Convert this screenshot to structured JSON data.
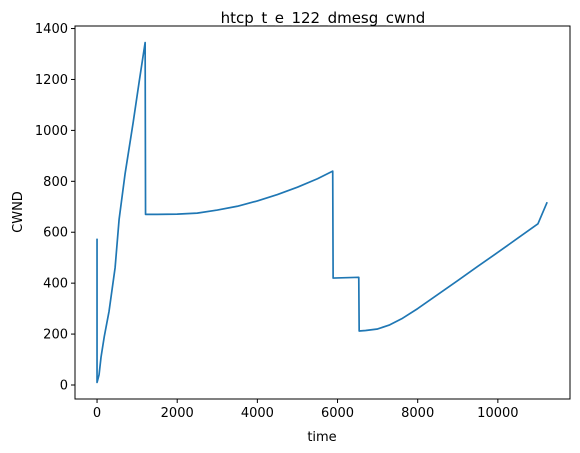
{
  "chart_data": {
    "type": "line",
    "title": "htcp_t_e_122_dmesg_cwnd",
    "xlabel": "time",
    "ylabel": "CWND",
    "xlim": [
      -550,
      11800
    ],
    "ylim": [
      -55,
      1410
    ],
    "xticks": [
      0,
      2000,
      4000,
      6000,
      8000,
      10000
    ],
    "yticks": [
      0,
      200,
      400,
      600,
      800,
      1000,
      1200,
      1400
    ],
    "grid": false,
    "legend": "none",
    "series": [
      {
        "color": "#1f77b4",
        "points": [
          [
            0,
            575
          ],
          [
            0,
            10
          ],
          [
            50,
            40
          ],
          [
            100,
            110
          ],
          [
            180,
            190
          ],
          [
            300,
            290
          ],
          [
            450,
            460
          ],
          [
            550,
            650
          ],
          [
            700,
            830
          ],
          [
            900,
            1030
          ],
          [
            1050,
            1190
          ],
          [
            1200,
            1345
          ],
          [
            1210,
            670
          ],
          [
            1500,
            670
          ],
          [
            2000,
            671
          ],
          [
            2500,
            675
          ],
          [
            3000,
            687
          ],
          [
            3500,
            702
          ],
          [
            4000,
            723
          ],
          [
            4500,
            748
          ],
          [
            5000,
            777
          ],
          [
            5500,
            810
          ],
          [
            5880,
            840
          ],
          [
            5890,
            420
          ],
          [
            6530,
            423
          ],
          [
            6540,
            212
          ],
          [
            6700,
            214
          ],
          [
            7000,
            220
          ],
          [
            7300,
            236
          ],
          [
            7600,
            260
          ],
          [
            8000,
            300
          ],
          [
            8500,
            355
          ],
          [
            9000,
            410
          ],
          [
            9500,
            466
          ],
          [
            10000,
            521
          ],
          [
            10500,
            577
          ],
          [
            11000,
            633
          ],
          [
            11230,
            718
          ]
        ]
      }
    ]
  }
}
